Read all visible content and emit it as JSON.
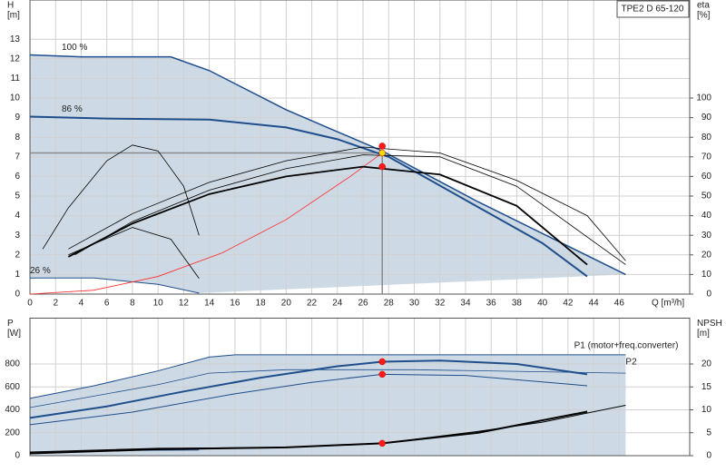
{
  "chart_data": [
    {
      "type": "line",
      "title": "TPE2 D 65-120",
      "ylabel": [
        "H",
        "[m]"
      ],
      "y2label": [
        "eta",
        "[%]"
      ],
      "xlabel": "Q [m³/h]",
      "xlim": [
        0,
        51.5
      ],
      "xticks": [
        0,
        2,
        4,
        6,
        8,
        10,
        12,
        14,
        16,
        18,
        20,
        22,
        24,
        26,
        28,
        30,
        32,
        34,
        36,
        38,
        40,
        42,
        44,
        46
      ],
      "ylim": [
        0,
        15
      ],
      "yticks": [
        0,
        1,
        2,
        3,
        4,
        5,
        6,
        7,
        8,
        9,
        10,
        11,
        12,
        13
      ],
      "y2lim": [
        0,
        150
      ],
      "y2ticks": [
        0,
        10,
        20,
        30,
        40,
        50,
        60,
        70,
        80,
        90,
        100
      ],
      "grid": true,
      "shade_color": "#cddae5",
      "series": [
        {
          "label": "100 %",
          "color": "#1f4e8c",
          "width": 1.5,
          "x": [
            0,
            4,
            8,
            11,
            14,
            20,
            27.5,
            35,
            46.5
          ],
          "values": [
            12.2,
            12.1,
            12.1,
            12.1,
            11.4,
            9.4,
            7.3,
            4.7,
            1.0
          ]
        },
        {
          "label": "86 %",
          "color": "#1f4e8c",
          "width": 2,
          "x": [
            0,
            6,
            14,
            20,
            24,
            28,
            34,
            40,
            43.5
          ],
          "values": [
            9.05,
            8.95,
            8.9,
            8.5,
            7.9,
            7.0,
            4.8,
            2.6,
            0.9
          ]
        },
        {
          "label": "26 %",
          "color": "#1f4e8c",
          "width": 1,
          "x": [
            0,
            5,
            10,
            13.2
          ],
          "values": [
            0.82,
            0.82,
            0.5,
            0.05
          ]
        },
        {
          "color": "#ff2a2a",
          "width": 0.8,
          "x": [
            0,
            5,
            10,
            15,
            20,
            25,
            27.5
          ],
          "values": [
            0,
            0.2,
            0.9,
            2.1,
            3.8,
            6.0,
            7.2
          ]
        },
        {
          "axis": "y2",
          "color": "#000000",
          "width": 0.8,
          "x": [
            3,
            8,
            14,
            20,
            26,
            32,
            38,
            43.5,
            46.5
          ],
          "values": [
            23,
            41,
            57,
            68,
            75,
            72,
            58,
            40,
            17
          ]
        },
        {
          "axis": "y2",
          "color": "#000000",
          "width": 1.8,
          "x": [
            3,
            8,
            14,
            20,
            26,
            32,
            38,
            43.5
          ],
          "values": [
            19,
            36,
            51,
            60,
            65,
            61,
            45,
            15
          ]
        },
        {
          "axis": "y2",
          "color": "#000000",
          "width": 0.8,
          "x": [
            3.5,
            8,
            14,
            20,
            26,
            32,
            38,
            46.5
          ],
          "values": [
            20,
            37,
            53,
            64,
            71,
            70,
            55,
            15
          ]
        },
        {
          "axis": "y2",
          "color": "#000000",
          "width": 0.8,
          "x": [
            1,
            3,
            6,
            8,
            10,
            12,
            13.2
          ],
          "values": [
            23,
            44,
            68,
            76,
            73,
            55,
            30
          ]
        },
        {
          "axis": "y2",
          "color": "#000000",
          "width": 0.8,
          "x": [
            3,
            8,
            11,
            13.2
          ],
          "values": [
            20,
            34,
            28,
            8
          ]
        }
      ],
      "hline": 7.2,
      "vline": 27.5,
      "refline_color": "#8a8a8a",
      "points": [
        {
          "x": 27.5,
          "y": 7.55,
          "color": "#ff1a1a"
        },
        {
          "x": 27.5,
          "y": 6.5,
          "color": "#ff1a1a"
        },
        {
          "x": 27.5,
          "y": 7.2,
          "color": "#f5d800"
        }
      ]
    },
    {
      "type": "line",
      "ylabel": [
        "P",
        "[W]"
      ],
      "y2label": [
        "NPSH",
        "[m]"
      ],
      "xlim": [
        0,
        51.5
      ],
      "ylim": [
        0,
        1200
      ],
      "yticks": [
        0,
        200,
        400,
        600,
        800
      ],
      "y2lim": [
        0,
        30
      ],
      "y2ticks": [
        0,
        5,
        10,
        15,
        20
      ],
      "grid": true,
      "shade_color": "#cddae5",
      "series": [
        {
          "label": "P1 (motor+freq.converter)",
          "color": "#1f4e8c",
          "width": 1,
          "x": [
            0,
            5,
            10,
            14,
            16,
            46.5
          ],
          "values": [
            500,
            610,
            740,
            860,
            880,
            880
          ]
        },
        {
          "label": "P2",
          "color": "#1f4e8c",
          "width": 0.8,
          "x": [
            0,
            5,
            10,
            14,
            20,
            30,
            46.5
          ],
          "values": [
            420,
            520,
            620,
            720,
            750,
            750,
            720
          ]
        },
        {
          "color": "#1f4e8c",
          "width": 2,
          "x": [
            0,
            6,
            12,
            18,
            24,
            27.5,
            32,
            38,
            43.5
          ],
          "values": [
            330,
            430,
            560,
            680,
            780,
            820,
            830,
            800,
            710
          ]
        },
        {
          "color": "#1f4e8c",
          "width": 1,
          "x": [
            0,
            8,
            16,
            22,
            27.5,
            34,
            43.5
          ],
          "values": [
            270,
            380,
            540,
            640,
            710,
            700,
            610
          ]
        },
        {
          "color": "#1f4e8c",
          "width": 1,
          "x": [
            0,
            6,
            13.2
          ],
          "values": [
            30,
            45,
            50
          ]
        },
        {
          "axis": "y2",
          "color": "#000000",
          "width": 1,
          "x": [
            0,
            10,
            20,
            27.5,
            35,
            40,
            46.5
          ],
          "values": [
            0.8,
            1.6,
            1.8,
            2.7,
            5.3,
            7.3,
            11
          ]
        },
        {
          "axis": "y2",
          "color": "#000000",
          "width": 2,
          "x": [
            0,
            10,
            20,
            27.5,
            35,
            43.5
          ],
          "values": [
            0.5,
            1.4,
            1.8,
            2.7,
            5,
            9.6
          ]
        }
      ],
      "points": [
        {
          "x": 27.5,
          "y": 820,
          "color": "#ff1a1a"
        },
        {
          "x": 27.5,
          "y": 710,
          "color": "#ff1a1a"
        },
        {
          "x": 27.5,
          "y": 2.7,
          "axis": "y2",
          "color": "#ff1a1a"
        }
      ]
    }
  ]
}
